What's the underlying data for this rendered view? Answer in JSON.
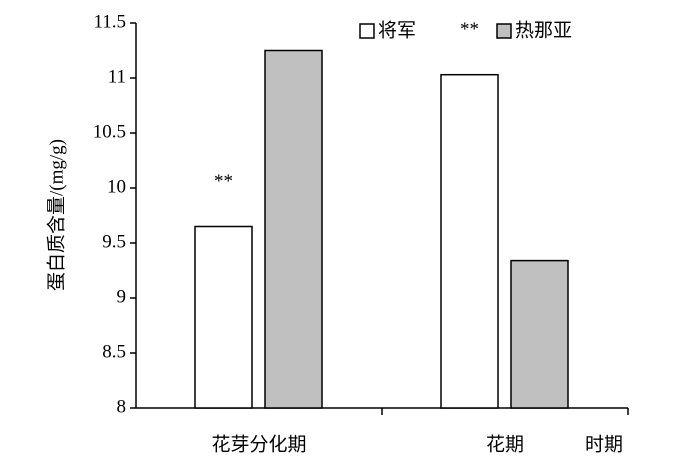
{
  "chart_data": {
    "type": "bar",
    "y_label": "蛋白质含量/(mg/g)",
    "x_label": "时期",
    "categories": [
      "花芽分化期",
      "花期"
    ],
    "series": [
      {
        "name": "将军",
        "color": "#ffffff",
        "values": [
          9.65,
          11.03
        ]
      },
      {
        "name": "热那亚",
        "color": "#c0c0c0",
        "values": [
          11.25,
          9.34
        ]
      }
    ],
    "annotations": [
      "**",
      "**"
    ],
    "ylim": [
      8,
      11.5
    ],
    "yticks": [
      8,
      8.5,
      9,
      9.5,
      10,
      10.5,
      11,
      11.5
    ],
    "legend": "top-right"
  }
}
